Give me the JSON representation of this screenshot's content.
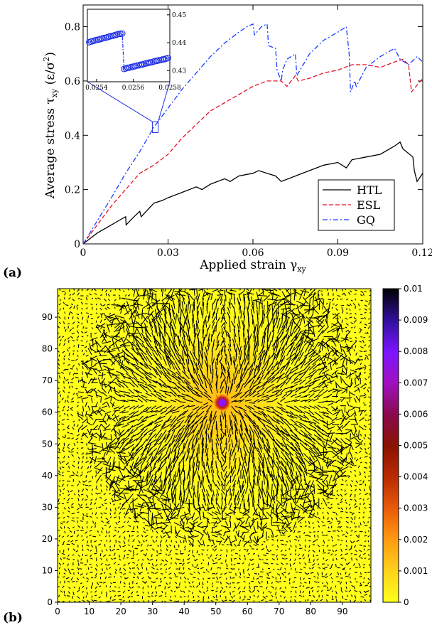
{
  "chart_data": [
    {
      "panel_label": "(a)",
      "type": "line",
      "xlabel": "Applied strain γxy",
      "xlabel_main": "Applied strain γ",
      "xlabel_sub": "xy",
      "ylabel": "Average stress τxy (ε/σ²)",
      "ylabel_main": "Average stress τ",
      "ylabel_sub": "xy",
      "ylabel_unit_open": " (ε/σ",
      "ylabel_unit_sup": "2",
      "ylabel_unit_close": ")",
      "xlim": [
        0,
        0.12
      ],
      "ylim": [
        0,
        0.88
      ],
      "xticks": [
        0,
        0.03,
        0.06,
        0.09,
        0.12
      ],
      "xtick_labels": [
        "0",
        "0.03",
        "0.06",
        "0.09",
        "0.12"
      ],
      "yticks": [
        0,
        0.2,
        0.4,
        0.6,
        0.8
      ],
      "ytick_labels": [
        "0",
        "0.2",
        "0.4",
        "0.6",
        "0.8"
      ],
      "legend_placement": "bottom-right",
      "series": [
        {
          "name": "HTL",
          "color": "#000000",
          "dash": "solid",
          "x": [
            0,
            0.005,
            0.01,
            0.0125,
            0.015,
            0.0152,
            0.018,
            0.02,
            0.0205,
            0.025,
            0.028,
            0.03,
            0.035,
            0.04,
            0.042,
            0.045,
            0.05,
            0.052,
            0.055,
            0.06,
            0.062,
            0.065,
            0.068,
            0.07,
            0.075,
            0.08,
            0.085,
            0.09,
            0.093,
            0.095,
            0.1,
            0.105,
            0.11,
            0.112,
            0.113,
            0.1165,
            0.117,
            0.118,
            0.12
          ],
          "y": [
            0,
            0.04,
            0.07,
            0.085,
            0.1,
            0.07,
            0.1,
            0.12,
            0.1,
            0.15,
            0.16,
            0.17,
            0.19,
            0.21,
            0.2,
            0.22,
            0.24,
            0.23,
            0.25,
            0.26,
            0.27,
            0.26,
            0.25,
            0.23,
            0.25,
            0.27,
            0.29,
            0.3,
            0.28,
            0.31,
            0.32,
            0.33,
            0.36,
            0.375,
            0.35,
            0.32,
            0.27,
            0.23,
            0.26
          ]
        },
        {
          "name": "ESL",
          "color": "#e8102a",
          "dash": "dashed",
          "x": [
            0,
            0.005,
            0.01,
            0.015,
            0.02,
            0.025,
            0.03,
            0.035,
            0.04,
            0.045,
            0.05,
            0.055,
            0.06,
            0.065,
            0.07,
            0.072,
            0.075,
            0.076,
            0.08,
            0.085,
            0.09,
            0.095,
            0.1,
            0.105,
            0.11,
            0.113,
            0.115,
            0.116,
            0.12
          ],
          "y": [
            0,
            0.07,
            0.14,
            0.2,
            0.26,
            0.29,
            0.33,
            0.39,
            0.44,
            0.49,
            0.52,
            0.55,
            0.58,
            0.6,
            0.6,
            0.58,
            0.62,
            0.6,
            0.61,
            0.63,
            0.64,
            0.66,
            0.66,
            0.65,
            0.67,
            0.68,
            0.66,
            0.56,
            0.61
          ]
        },
        {
          "name": "GQ",
          "color": "#1a3cff",
          "dash": "dash-dot",
          "x": [
            0,
            0.005,
            0.01,
            0.015,
            0.02,
            0.025,
            0.03,
            0.035,
            0.04,
            0.045,
            0.05,
            0.055,
            0.058,
            0.06,
            0.0605,
            0.063,
            0.065,
            0.0655,
            0.068,
            0.0685,
            0.07,
            0.0705,
            0.072,
            0.075,
            0.0755,
            0.08,
            0.085,
            0.09,
            0.093,
            0.094,
            0.0945,
            0.096,
            0.0965,
            0.1,
            0.105,
            0.11,
            0.112,
            0.115,
            0.118,
            0.12
          ],
          "y": [
            0,
            0.085,
            0.17,
            0.26,
            0.34,
            0.43,
            0.5,
            0.57,
            0.63,
            0.69,
            0.74,
            0.78,
            0.8,
            0.81,
            0.77,
            0.8,
            0.81,
            0.73,
            0.72,
            0.64,
            0.6,
            0.64,
            0.68,
            0.7,
            0.62,
            0.7,
            0.75,
            0.78,
            0.8,
            0.7,
            0.56,
            0.6,
            0.58,
            0.65,
            0.69,
            0.72,
            0.68,
            0.66,
            0.69,
            0.67
          ]
        }
      ],
      "inset": {
        "xlim": [
          0.02535,
          0.0258
        ],
        "ylim": [
          0.426,
          0.452
        ],
        "xtick_labels": [
          "0.0254",
          "0.0256",
          "0.0258"
        ],
        "xticks": [
          0.0254,
          0.0256,
          0.0258
        ],
        "ytick_labels": [
          "0.43",
          "0.44",
          "0.45"
        ],
        "yticks": [
          0.43,
          0.44,
          0.45
        ],
        "marker_color": "#2030e8",
        "x": [
          0.02536,
          0.02537,
          0.02538,
          0.02539,
          0.0254,
          0.02541,
          0.02542,
          0.02543,
          0.02544,
          0.02545,
          0.02546,
          0.02547,
          0.02548,
          0.02549,
          0.0255,
          0.02551,
          0.02552,
          0.02553,
          0.02554,
          0.02555,
          0.02556,
          0.02557,
          0.02558,
          0.02559,
          0.0256,
          0.02561,
          0.02562,
          0.02563,
          0.02564,
          0.02565,
          0.02566,
          0.02567,
          0.02568,
          0.02569,
          0.0257,
          0.02571,
          0.02572,
          0.02573,
          0.02574,
          0.02575,
          0.02576,
          0.02577,
          0.02578,
          0.02579
        ],
        "y": [
          0.4402,
          0.4404,
          0.4406,
          0.4408,
          0.441,
          0.4411,
          0.4413,
          0.4415,
          0.4417,
          0.4418,
          0.442,
          0.4422,
          0.4424,
          0.4425,
          0.4427,
          0.4429,
          0.4431,
          0.4432,
          0.4433,
          0.4306,
          0.4308,
          0.431,
          0.4311,
          0.4313,
          0.4314,
          0.4316,
          0.4318,
          0.4319,
          0.4321,
          0.4322,
          0.4324,
          0.4326,
          0.4327,
          0.4329,
          0.433,
          0.4332,
          0.4334,
          0.4335,
          0.4337,
          0.4338,
          0.434,
          0.4341,
          0.4343,
          0.4345
        ],
        "zoom_region_x": [
          0.0245,
          0.0265
        ],
        "zoom_region_y": [
          0.41,
          0.45
        ]
      }
    },
    {
      "panel_label": "(b)",
      "type": "heatmap",
      "xlim": [
        0,
        99
      ],
      "ylim": [
        0,
        99
      ],
      "xticks": [
        0,
        10,
        20,
        30,
        40,
        50,
        60,
        70,
        80,
        90
      ],
      "xtick_labels": [
        "0",
        "10",
        "20",
        "30",
        "40",
        "50",
        "60",
        "70",
        "80",
        "90"
      ],
      "yticks": [
        0,
        10,
        20,
        30,
        40,
        50,
        60,
        70,
        80,
        90
      ],
      "ytick_labels": [
        "0",
        "10",
        "20",
        "30",
        "40",
        "50",
        "60",
        "70",
        "80",
        "90"
      ],
      "hotspot_center": [
        52,
        63
      ],
      "colorbar": {
        "min": 0,
        "max": 0.01,
        "ticks": [
          0,
          0.001,
          0.002,
          0.003,
          0.004,
          0.005,
          0.006,
          0.007,
          0.008,
          0.009,
          0.01
        ],
        "tick_labels": [
          "0",
          "0.001",
          "0.002",
          "0.003",
          "0.004",
          "0.005",
          "0.006",
          "0.007",
          "0.008",
          "0.009",
          "0.01"
        ],
        "colors": [
          "#ffff1a",
          "#ffd21c",
          "#ff9a10",
          "#e85a08",
          "#b82a02",
          "#8a1200",
          "#7a0a3a",
          "#8a10a0",
          "#7a14ff",
          "#30109a",
          "#000000"
        ]
      }
    }
  ]
}
